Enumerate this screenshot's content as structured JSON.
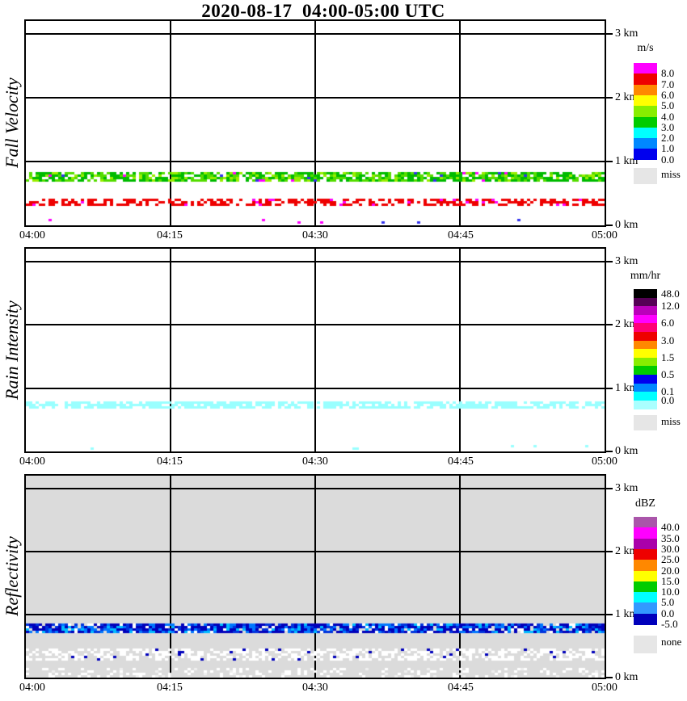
{
  "title": "2020-08-17  04:00-05:00 UTC",
  "axis": {
    "x_ticks": [
      "04:00",
      "04:15",
      "04:30",
      "04:45",
      "05:00"
    ],
    "x_gridlines": [
      "04:15",
      "04:30",
      "04:45"
    ],
    "y_ticks": [
      "0 km",
      "1 km",
      "2 km",
      "3 km"
    ],
    "y_range_km": [
      0,
      3
    ]
  },
  "chart_data": [
    {
      "id": "fall-velocity",
      "type": "heatmap",
      "ylabel": "Fall Velocity",
      "unit": "m/s",
      "x_range": [
        "04:00",
        "05:00"
      ],
      "y_range_km": [
        0,
        3
      ],
      "background": "#FFFFFF",
      "bands": [
        {
          "y_km": [
            0.72,
            0.84
          ],
          "approx_values": "3-5 m/s layer",
          "density": 0.8,
          "colors": [
            [
              "#00BB00",
              0.48
            ],
            [
              "#55DD00",
              0.31
            ],
            [
              "#99EE00",
              0.17
            ],
            [
              "#FF00FF",
              0.02
            ],
            [
              "#3333EE",
              0.02
            ]
          ]
        },
        {
          "y_km": [
            0.33,
            0.42
          ],
          "approx_values": "7-8 m/s layer",
          "density": 0.6,
          "colors": [
            [
              "#EE0000",
              0.93
            ],
            [
              "#FF00FF",
              0.07
            ]
          ]
        },
        {
          "y_km": [
            0.03,
            0.1
          ],
          "approx_values": "sparse >8 m/s specks",
          "density": 0.025,
          "colors": [
            [
              "#FF00FF",
              0.6
            ],
            [
              "#3333EE",
              0.4
            ]
          ]
        }
      ],
      "colorbar": {
        "title": "m/s",
        "top_label": "",
        "segments": [
          [
            "#FF00FF",
            "8.0"
          ],
          [
            "#EE0000",
            "7.0"
          ],
          [
            "#FF8800",
            "6.0"
          ],
          [
            "#FFFF00",
            "5.0"
          ],
          [
            "#88EE00",
            "4.0"
          ],
          [
            "#00CC00",
            "3.0"
          ],
          [
            "#00FFFF",
            "2.0"
          ],
          [
            "#0088FF",
            "1.0"
          ],
          [
            "#0000EE",
            "0.0"
          ]
        ],
        "miss_color": "#E6E6E6",
        "miss_label": "miss"
      }
    },
    {
      "id": "rain-intensity",
      "type": "heatmap",
      "ylabel": "Rain Intensity",
      "unit": "mm/hr",
      "x_range": [
        "04:00",
        "05:00"
      ],
      "y_range_km": [
        0,
        3
      ],
      "background": "#FFFFFF",
      "bands": [
        {
          "y_km": [
            0.7,
            0.79
          ],
          "approx_values": "0.0-0.1 mm/hr layer",
          "density": 0.72,
          "colors": [
            [
              "#99FFFF",
              1.0
            ]
          ]
        },
        {
          "y_km": [
            0.03,
            0.1
          ],
          "approx_values": "sparse trace specks",
          "density": 0.015,
          "colors": [
            [
              "#99FFFF",
              1.0
            ]
          ]
        }
      ],
      "colorbar": {
        "title": "mm/hr",
        "top_label": "48.0",
        "segments": [
          [
            "#000000",
            ""
          ],
          [
            "#550055",
            "12.0"
          ],
          [
            "#BB00BB",
            ""
          ],
          [
            "#FF00FF",
            "6.0"
          ],
          [
            "#FF0077",
            ""
          ],
          [
            "#EE0000",
            "3.0"
          ],
          [
            "#FF8800",
            ""
          ],
          [
            "#FFFF00",
            "1.5"
          ],
          [
            "#88EE00",
            ""
          ],
          [
            "#00CC00",
            "0.5"
          ],
          [
            "#0000EE",
            ""
          ],
          [
            "#0088FF",
            "0.1"
          ],
          [
            "#00FFFF",
            "0.0"
          ],
          [
            "#AAFFFF",
            ""
          ]
        ],
        "miss_color": "#E6E6E6",
        "miss_label": "miss"
      }
    },
    {
      "id": "reflectivity",
      "type": "heatmap",
      "ylabel": "Reflectivity",
      "unit": "dBZ",
      "x_range": [
        "04:00",
        "05:00"
      ],
      "y_range_km": [
        0,
        3
      ],
      "background": "#DBDBDB",
      "bands": [
        {
          "y_km": [
            0.74,
            0.86
          ],
          "approx_values": "-5 to +10 dBZ layer",
          "density": 0.93,
          "colors": [
            [
              "#0000BB",
              0.42
            ],
            [
              "#0033DD",
              0.2
            ],
            [
              "#0077FF",
              0.18
            ],
            [
              "#00BBFF",
              0.1
            ],
            [
              "#FFFFFF",
              0.1
            ]
          ]
        },
        {
          "y_km": [
            0.28,
            0.46
          ],
          "approx_values": "mostly no-signal (white) with few -5 dBZ dots",
          "density": 0.48,
          "colors": [
            [
              "#FFFFFF",
              0.93
            ],
            [
              "#0000BB",
              0.07
            ]
          ]
        },
        {
          "y_km": [
            0.02,
            0.15
          ],
          "approx_values": "sparse no-signal specks",
          "density": 0.22,
          "colors": [
            [
              "#FFFFFF",
              0.85
            ],
            [
              "#EEEEEE",
              0.15
            ]
          ]
        }
      ],
      "colorbar": {
        "title": "dBZ",
        "top_label": "",
        "segments": [
          [
            "#AA55AA",
            "40.0"
          ],
          [
            "#FF00FF",
            "35.0"
          ],
          [
            "#AA00AA",
            "30.0"
          ],
          [
            "#EE0000",
            "25.0"
          ],
          [
            "#FF8800",
            "20.0"
          ],
          [
            "#FFFF00",
            "15.0"
          ],
          [
            "#00CC00",
            "10.0"
          ],
          [
            "#00FFFF",
            "5.0"
          ],
          [
            "#3399FF",
            "0.0"
          ],
          [
            "#0000BB",
            "-5.0"
          ]
        ],
        "miss_color": "#E6E6E6",
        "miss_label": "none"
      }
    }
  ]
}
